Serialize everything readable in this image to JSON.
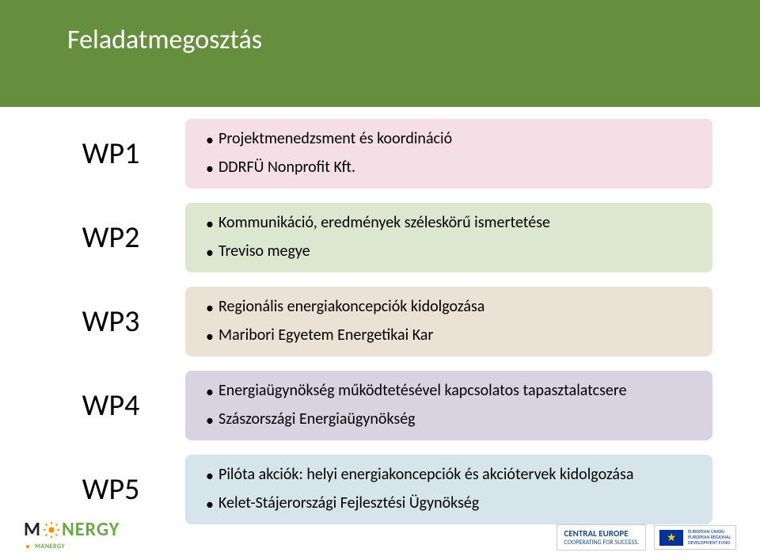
{
  "colors": {
    "bg_top": "#668f3d",
    "bg_bottom": "#ffffff",
    "title_text": "#ffffff",
    "tag_bg": "#ffffff",
    "tag_text": "#000000",
    "desc_text": "#000000",
    "wp1_bg": "#f4dfe7",
    "wp2_bg": "#dde7d0",
    "wp3_bg": "#ebe2d5",
    "wp4_bg": "#d9d2e1",
    "wp5_bg": "#d6e5ea",
    "logo_dark": "#222222",
    "logo_orange": "#f39200",
    "logo_green": "#6aa842",
    "ce_text": "#1a4b8a",
    "eu_flag_bg": "#003399",
    "eu_star": "#ffcc00",
    "eu_text": "#003399"
  },
  "title": "Feladatmegosztás",
  "rows": [
    {
      "tag": "WP1",
      "bg_key": "wp1_bg",
      "lines": [
        "Projektmenedzsment és koordináció",
        "DDRFÜ Nonprofit Kft."
      ]
    },
    {
      "tag": "WP2",
      "bg_key": "wp2_bg",
      "lines": [
        "Kommunikáció, eredmények széleskörű ismertetése",
        "Treviso megye"
      ]
    },
    {
      "tag": "WP3",
      "bg_key": "wp3_bg",
      "lines": [
        "Regionális energiakoncepciók kidolgozása",
        "Maribori Egyetem Energetikai Kar"
      ]
    },
    {
      "tag": "WP4",
      "bg_key": "wp4_bg",
      "lines": [
        "Energiaügynökség működtetésével kapcsolatos tapasztalatcsere",
        "Szászországi Energiaügynökség"
      ]
    },
    {
      "tag": "WP5",
      "bg_key": "wp5_bg",
      "lines": [
        "Pilóta akciók: helyi energiakoncepciók és akciótervek kidolgozása",
        "Kelet-Stájerországi Fejlesztési Ügynökség"
      ]
    }
  ],
  "logo_left": {
    "m": "M",
    "nergy": "NERGY",
    "sub": "MANERGY"
  },
  "logo_right": {
    "ce_top": "CENTRAL EUROPE",
    "ce_bot": "COOPERATING FOR SUCCESS.",
    "eu_text": "EUROPEAN UNION\nEUROPEAN REGIONAL\nDEVELOPMENT FUND"
  }
}
